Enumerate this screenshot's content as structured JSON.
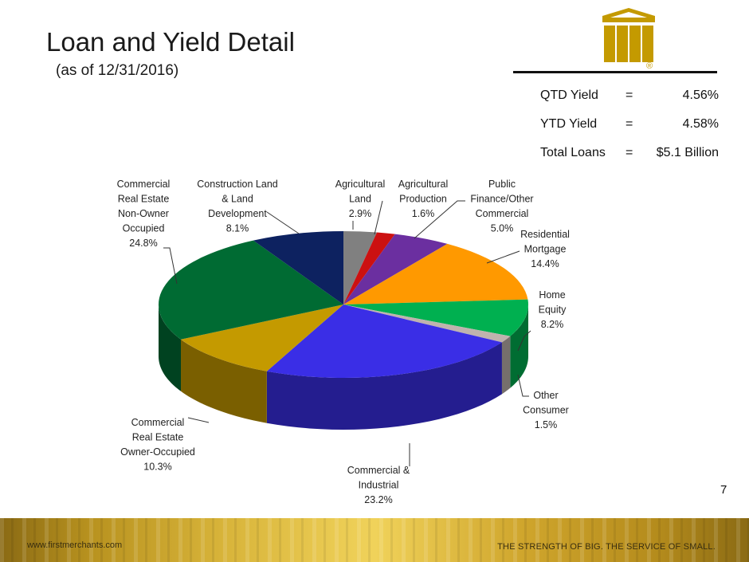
{
  "header": {
    "title": "Loan and Yield Detail",
    "subtitle": "(as of 12/31/2016)"
  },
  "stats": [
    {
      "label": "QTD  Yield",
      "eq": "=",
      "value": "4.56%"
    },
    {
      "label": "YTD Yield",
      "eq": "=",
      "value": "4.58%"
    },
    {
      "label": "Total Loans",
      "eq": "=",
      "value": "$5.1 Billion"
    }
  ],
  "chart_data": {
    "type": "pie",
    "style": "3d",
    "title": "",
    "slices": [
      {
        "label": [
          "Agricultural",
          "Land"
        ],
        "value_label": "2.9%",
        "value": 2.9,
        "color": "#808080"
      },
      {
        "label": [
          "Agricultural",
          "Production"
        ],
        "value_label": "1.6%",
        "value": 1.6,
        "color": "#cc1111"
      },
      {
        "label": [
          "Public",
          "Finance/Other",
          "Commercial"
        ],
        "value_label": "5.0%",
        "value": 5.0,
        "color": "#6b2fa0"
      },
      {
        "label": [
          "Residential",
          "Mortgage"
        ],
        "value_label": "14.4%",
        "value": 14.4,
        "color": "#ff9900"
      },
      {
        "label": [
          "Home",
          "Equity"
        ],
        "value_label": "8.2%",
        "value": 8.2,
        "color": "#00b050"
      },
      {
        "label": [
          "Other",
          "Consumer"
        ],
        "value_label": "1.5%",
        "value": 1.5,
        "color": "#bfb3ae"
      },
      {
        "label": [
          "Commercial &",
          "Industrial"
        ],
        "value_label": "23.2%",
        "value": 23.2,
        "color": "#3a2ee6"
      },
      {
        "label": [
          "Commercial",
          "Real Estate",
          "Owner-Occupied"
        ],
        "value_label": "10.3%",
        "value": 10.3,
        "color": "#c49a00"
      },
      {
        "label": [
          "Commercial",
          "Real Estate",
          "Non-Owner",
          "Occupied"
        ],
        "value_label": "24.8%",
        "value": 24.8,
        "color": "#006b33"
      },
      {
        "label": [
          "Construction Land",
          "& Land",
          "Development"
        ],
        "value_label": "8.1%",
        "value": 8.1,
        "color": "#0d2260"
      }
    ]
  },
  "page_number": "7",
  "footer": {
    "url": "www.firstmerchants.com",
    "tagline": "THE STRENGTH OF BIG. THE SERVICE OF SMALL."
  },
  "logo": {
    "icon": "first-merchants-logo-icon",
    "color": "#c49a00",
    "registered_mark": "®"
  },
  "colors": {
    "footer_gold": "#c9a227",
    "footer_dark": "#8a6a14"
  }
}
